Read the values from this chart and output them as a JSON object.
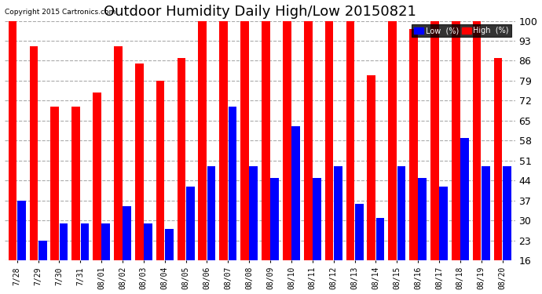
{
  "title": "Outdoor Humidity Daily High/Low 20150821",
  "copyright": "Copyright 2015 Cartronics.com",
  "dates": [
    "7/28",
    "7/29",
    "7/30",
    "7/31",
    "08/01",
    "08/02",
    "08/03",
    "08/04",
    "08/05",
    "08/06",
    "08/07",
    "08/08",
    "08/09",
    "08/10",
    "08/11",
    "08/12",
    "08/13",
    "08/14",
    "08/15",
    "08/16",
    "08/17",
    "08/18",
    "08/19",
    "08/20"
  ],
  "high": [
    100,
    91,
    70,
    70,
    75,
    91,
    85,
    79,
    87,
    100,
    100,
    100,
    100,
    100,
    100,
    100,
    100,
    81,
    100,
    97,
    100,
    100,
    100,
    87
  ],
  "low": [
    37,
    23,
    29,
    29,
    29,
    35,
    29,
    27,
    42,
    49,
    70,
    49,
    45,
    63,
    45,
    49,
    36,
    31,
    49,
    45,
    42,
    59,
    49,
    49
  ],
  "ylim_min": 16,
  "ylim_max": 100,
  "yticks": [
    16,
    23,
    30,
    37,
    44,
    51,
    58,
    65,
    72,
    79,
    86,
    93,
    100
  ],
  "high_color": "#ff0000",
  "low_color": "#0000ff",
  "bg_color": "#ffffff",
  "grid_color": "#aaaaaa",
  "title_fontsize": 13,
  "legend_low_label": "Low  (%)",
  "legend_high_label": "High  (%)"
}
